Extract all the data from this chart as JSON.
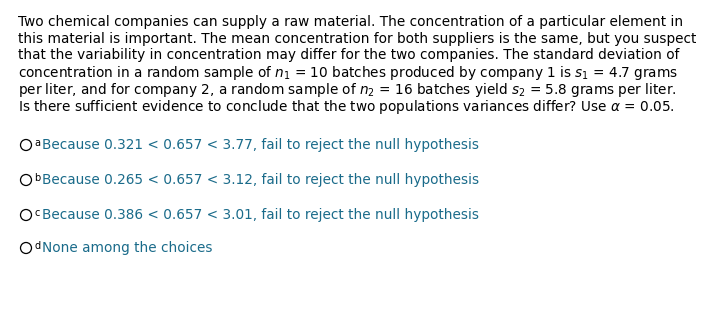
{
  "bg_color": "#ffffff",
  "text_color": "#000000",
  "teal_color": "#1a6b8a",
  "para_lines": [
    "Two chemical companies can supply a raw material. The concentration of a particular element in",
    "this material is important. The mean concentration for both suppliers is the same, but you suspect",
    "that the variability in concentration may differ for the two companies. The standard deviation of",
    "concentration in a random sample of $n_1$ = 10 batches produced by company 1 is $s_1$ = 4.7 grams",
    "per liter, and for company 2, a random sample of $n_2$ = 16 batches yield $s_2$ = 5.8 grams per liter.",
    "Is there sufficient evidence to conclude that the two populations variances differ? Use $\\alpha$ = 0.05."
  ],
  "choices": [
    {
      "label": "a",
      "text": "Because 0.321 < 0.657 < 3.77, fail to reject the null hypothesis"
    },
    {
      "label": "b",
      "text": "Because 0.265 < 0.657 < 3.12, fail to reject the null hypothesis"
    },
    {
      "label": "c",
      "text": "Because 0.386 < 0.657 < 3.01, fail to reject the null hypothesis"
    },
    {
      "label": "d",
      "text": "None among the choices"
    }
  ],
  "font_size_para": 9.8,
  "font_size_choices": 9.8,
  "font_size_label": 7.0
}
